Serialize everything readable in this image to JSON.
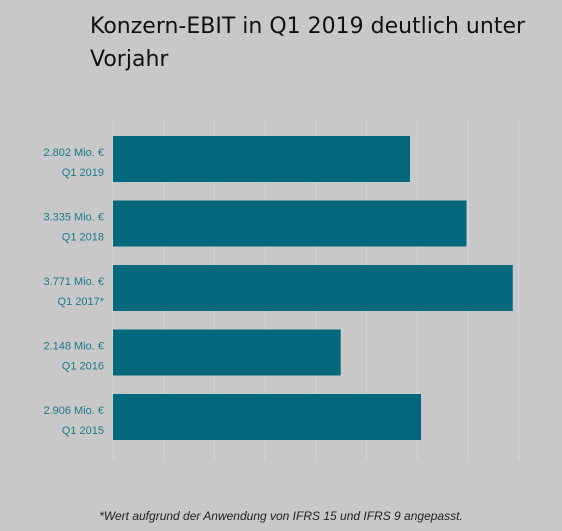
{
  "title": "Konzern-EBIT in Q1 2019 deutlich unter Vorjahr",
  "footnote": "*Wert aufgrund der Anwendung von IFRS 15 und IFRS 9 angepasst.",
  "colors": {
    "bar": "#03687c",
    "label": "#1a7a8a",
    "grid": "#cfd8d8",
    "background": "#c8c8c8"
  },
  "chart_data": {
    "type": "bar",
    "orientation": "horizontal",
    "categories": [
      "Q1 2019",
      "Q1 2018",
      "Q1 2017*",
      "Q1 2016",
      "Q1 2015"
    ],
    "value_labels": [
      "2.802 Mio. €",
      "3.335 Mio. €",
      "3.771 Mio. €",
      "2.148 Mio. €",
      "2.906 Mio. €"
    ],
    "values": [
      2802,
      3335,
      3771,
      2148,
      2906
    ],
    "unit": "Mio. €",
    "xlim": [
      0,
      4000
    ],
    "grid": true,
    "legend": "none",
    "title": "Konzern-EBIT in Q1 2019 deutlich unter Vorjahr"
  }
}
